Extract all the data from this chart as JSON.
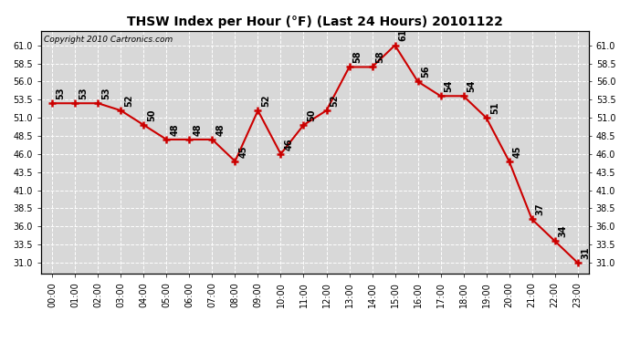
{
  "title": "THSW Index per Hour (°F) (Last 24 Hours) 20101122",
  "copyright": "Copyright 2010 Cartronics.com",
  "hours": [
    0,
    1,
    2,
    3,
    4,
    5,
    6,
    7,
    8,
    9,
    10,
    11,
    12,
    13,
    14,
    15,
    16,
    17,
    18,
    19,
    20,
    21,
    22,
    23
  ],
  "values": [
    53,
    53,
    53,
    52,
    50,
    48,
    48,
    48,
    45,
    52,
    46,
    50,
    52,
    58,
    58,
    61,
    56,
    54,
    54,
    51,
    45,
    37,
    34,
    31
  ],
  "x_labels": [
    "00:00",
    "01:00",
    "02:00",
    "03:00",
    "04:00",
    "05:00",
    "06:00",
    "07:00",
    "08:00",
    "09:00",
    "10:00",
    "11:00",
    "12:00",
    "13:00",
    "14:00",
    "15:00",
    "16:00",
    "17:00",
    "18:00",
    "19:00",
    "20:00",
    "21:00",
    "22:00",
    "23:00"
  ],
  "ylim": [
    29.5,
    63.0
  ],
  "yticks": [
    31.0,
    33.5,
    36.0,
    38.5,
    41.0,
    43.5,
    46.0,
    48.5,
    51.0,
    53.5,
    56.0,
    58.5,
    61.0
  ],
  "line_color": "#cc0000",
  "marker_color": "#cc0000",
  "bg_color": "#d8d8d8",
  "grid_color": "#ffffff",
  "title_fontsize": 10,
  "copyright_fontsize": 6.5,
  "label_fontsize": 7,
  "tick_fontsize": 7,
  "figwidth": 6.9,
  "figheight": 3.75,
  "dpi": 100
}
